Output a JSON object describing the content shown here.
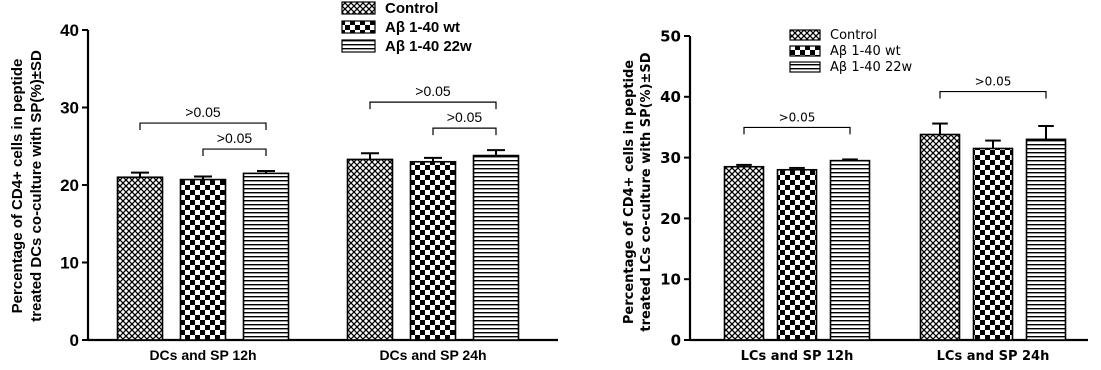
{
  "chart_data": [
    {
      "type": "bar",
      "title": "",
      "ylabel_line1": "Percentage of CD4+ cells in peptide",
      "ylabel_line2": "treated DCs co-culture with SP(%)±SD",
      "xlabel": "",
      "ylim": [
        0,
        40
      ],
      "yticks": [
        "0",
        "10",
        "20",
        "30",
        "40"
      ],
      "categories": [
        "DCs and SP 12h",
        "DCs and SP 24h"
      ],
      "series": [
        {
          "name": "Control",
          "values": [
            21.0,
            23.3
          ],
          "errors": [
            0.6,
            0.8
          ],
          "pattern": "crosshatch"
        },
        {
          "name": "Aβ 1-40 wt",
          "values": [
            20.7,
            23.0
          ],
          "errors": [
            0.4,
            0.5
          ],
          "pattern": "checker"
        },
        {
          "name": "Aβ 1-40 22w",
          "values": [
            21.5,
            23.8
          ],
          "errors": [
            0.3,
            0.7
          ],
          "pattern": "hstripes"
        }
      ],
      "annotations": [
        {
          "text": ">0.05",
          "category": 0,
          "from_series": 0,
          "to_series": 2
        },
        {
          "text": ">0.05",
          "category": 0,
          "from_series": 1,
          "to_series": 2
        },
        {
          "text": ">0.05",
          "category": 1,
          "from_series": 0,
          "to_series": 2
        },
        {
          "text": ">0.05",
          "category": 1,
          "from_series": 1,
          "to_series": 2
        }
      ],
      "legend_position": "top-center"
    },
    {
      "type": "bar",
      "title": "",
      "ylabel_line1": "Percentage of CD4+ cells in peptide",
      "ylabel_line2": "treated LCs co-culture with SP(%)±SD",
      "xlabel": "",
      "ylim": [
        0,
        50
      ],
      "yticks": [
        "0",
        "10",
        "20",
        "30",
        "40",
        "50"
      ],
      "categories": [
        "LCs and SP 12h",
        "LCs and SP 24h"
      ],
      "series": [
        {
          "name": "Control",
          "values": [
            28.5,
            33.8
          ],
          "errors": [
            0.3,
            1.8
          ],
          "pattern": "crosshatch"
        },
        {
          "name": "Aβ 1-40 wt",
          "values": [
            28.0,
            31.5
          ],
          "errors": [
            0.3,
            1.3
          ],
          "pattern": "checker"
        },
        {
          "name": "Aβ 1-40 22w",
          "values": [
            29.5,
            33.0
          ],
          "errors": [
            0.2,
            2.2
          ],
          "pattern": "hstripes"
        }
      ],
      "annotations": [
        {
          "text": ">0.05",
          "category": 0,
          "from_series": 0,
          "to_series": 2
        },
        {
          "text": ">0.05",
          "category": 1,
          "from_series": 0,
          "to_series": 2
        }
      ],
      "legend_position": "top-center"
    }
  ]
}
